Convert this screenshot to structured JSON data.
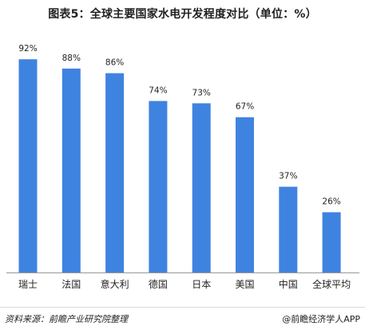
{
  "title": "图表5：全球主要国家水电开发程度对比（单位：%）",
  "source": "资料来源：前瞻产业研究院整理",
  "brand": "@前瞻经济学人APP",
  "colors": {
    "bar": "#3f83e0",
    "axis": "#999999"
  },
  "chart_data": {
    "type": "bar",
    "categories": [
      "瑞士",
      "法国",
      "意大利",
      "德国",
      "日本",
      "美国",
      "中国",
      "全球平均"
    ],
    "values": [
      92,
      88,
      86,
      74,
      73,
      67,
      37,
      26
    ],
    "value_labels": [
      "92%",
      "88%",
      "86%",
      "74%",
      "73%",
      "67%",
      "37%",
      "26%"
    ],
    "unit": "%",
    "ylim": [
      0,
      100
    ],
    "grid": false,
    "legend": "none"
  }
}
